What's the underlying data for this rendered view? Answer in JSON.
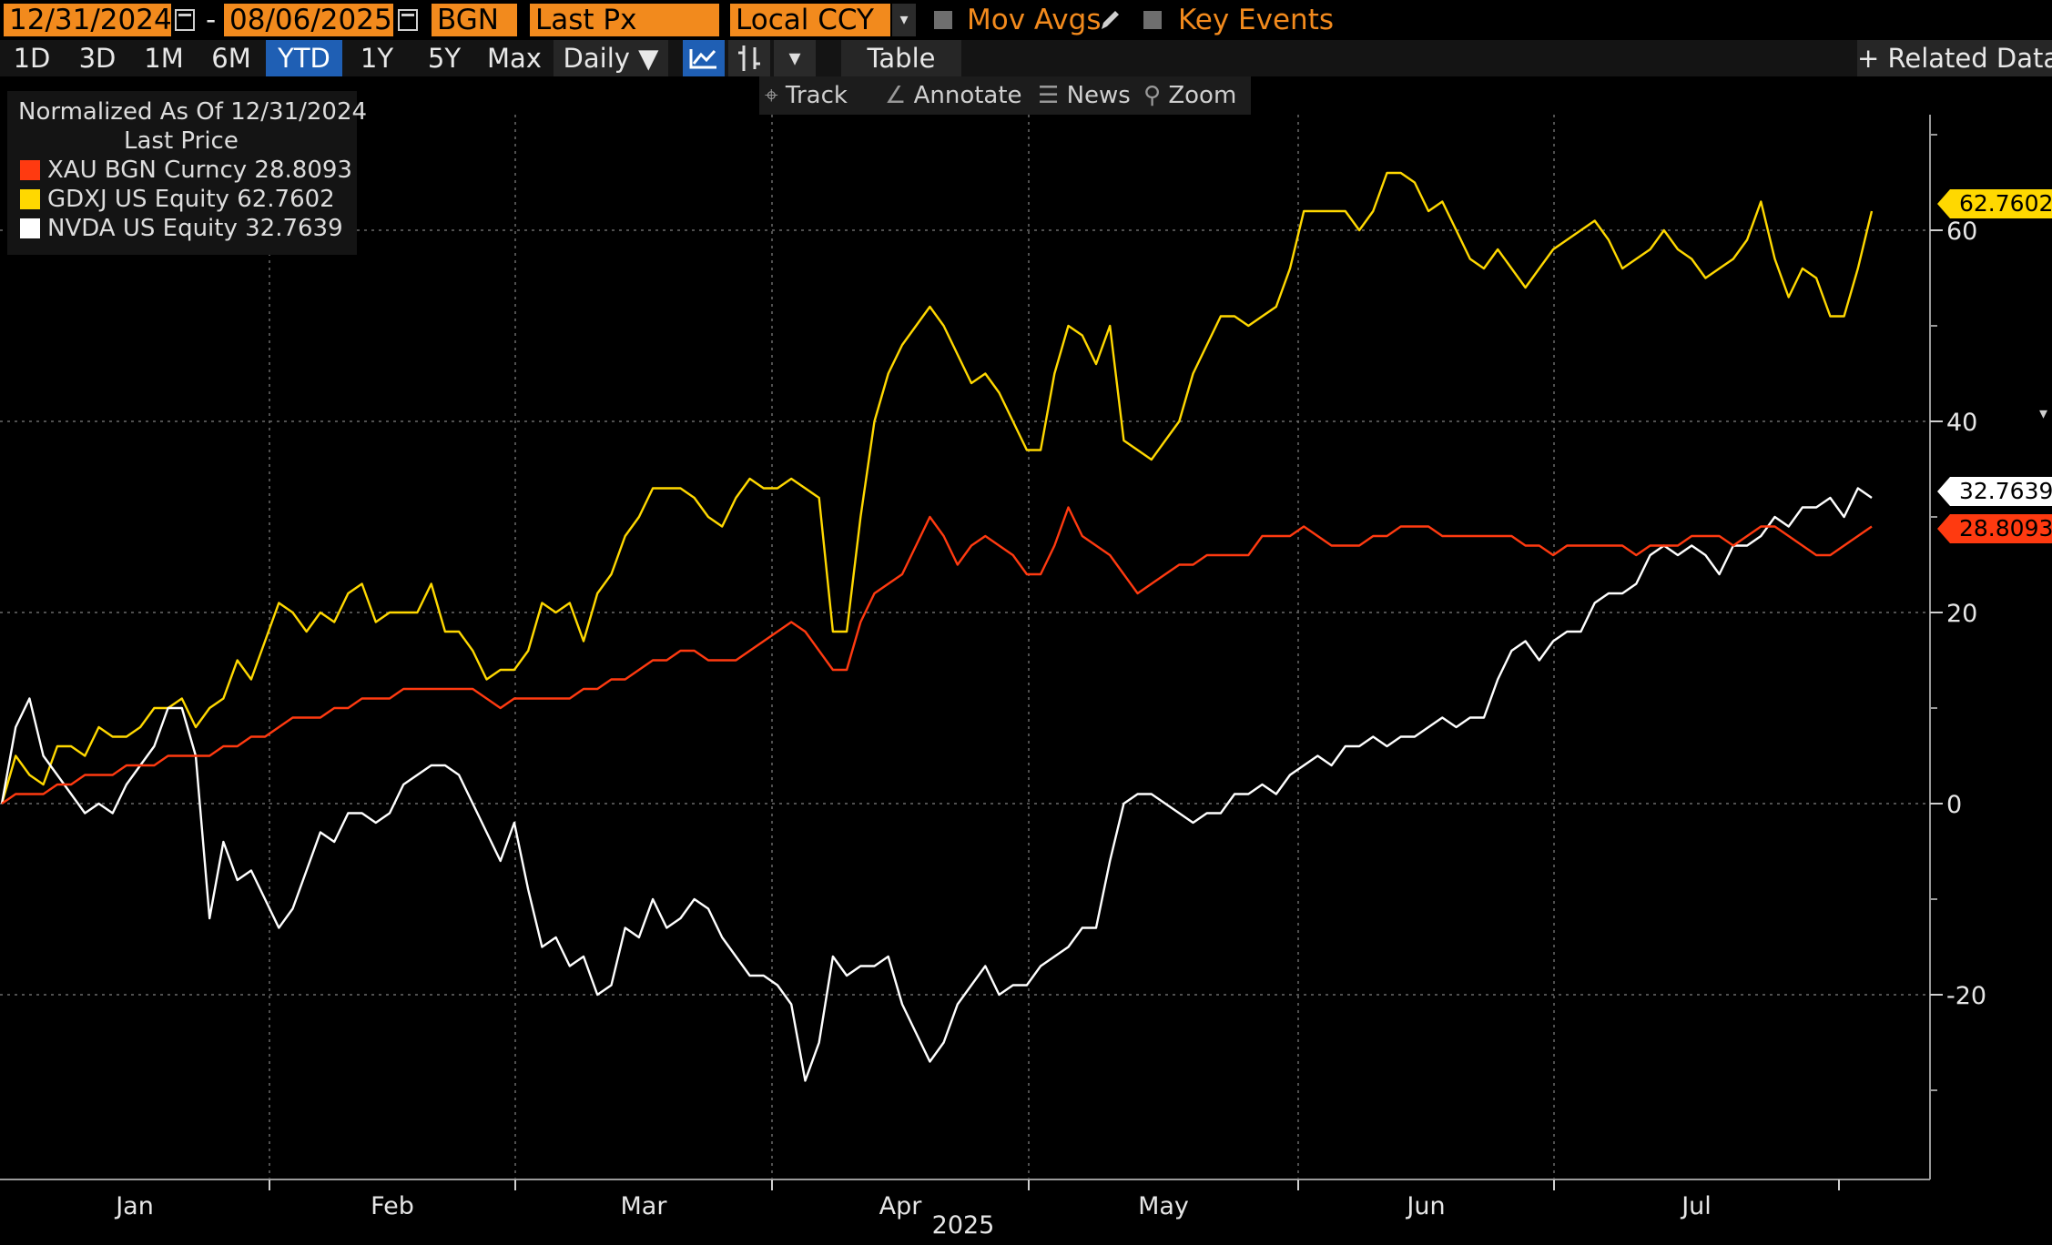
{
  "toolbar": {
    "start_date": "12/31/2024",
    "dash": "-",
    "end_date": "08/06/2025",
    "source": "BGN",
    "field": "Last Px",
    "currency": "Local CCY",
    "mov_avgs": "Mov Avgs",
    "key_events": "Key Events",
    "periods": [
      "1D",
      "3D",
      "1M",
      "6M",
      "YTD",
      "1Y",
      "5Y",
      "Max"
    ],
    "active_period": "YTD",
    "frequency": "Daily ▼",
    "table": "Table",
    "related_data": "+ Related Data"
  },
  "chart_tools": {
    "track": "Track",
    "annotate": "Annotate",
    "news": "News",
    "zoom": "Zoom"
  },
  "legend": {
    "line1": "Normalized As Of 12/31/2024",
    "line2": "Last Price",
    "entries": [
      {
        "label": "XAU BGN Curncy 28.8093",
        "color": "#ff3a10"
      },
      {
        "label": "GDXJ US Equity 62.7602",
        "color": "#ffd800"
      },
      {
        "label": "NVDA US Equity 32.7639",
        "color": "#ffffff"
      }
    ]
  },
  "chart_data": {
    "type": "line",
    "x_axis": {
      "months": [
        "Jan",
        "Feb",
        "Mar",
        "Apr",
        "May",
        "Jun",
        "Jul"
      ],
      "year": "2025"
    },
    "y_axis": {
      "ticks": [
        -20,
        0,
        20,
        40,
        60
      ],
      "range": [
        -40,
        75
      ],
      "side": "right"
    },
    "grid": true,
    "last_values": [
      "62.7602",
      "32.7639",
      "28.8093"
    ],
    "series": [
      {
        "name": "GDXJ US Equity",
        "color": "#ffd800",
        "values": [
          0,
          5,
          3,
          2,
          6,
          6,
          5,
          8,
          7,
          7,
          8,
          10,
          10,
          11,
          8,
          10,
          11,
          15,
          13,
          17,
          21,
          20,
          18,
          20,
          19,
          22,
          23,
          19,
          20,
          20,
          20,
          23,
          18,
          18,
          16,
          13,
          14,
          14,
          16,
          21,
          20,
          21,
          17,
          22,
          24,
          28,
          30,
          33,
          33,
          33,
          32,
          30,
          29,
          32,
          34,
          33,
          33,
          34,
          33,
          32,
          18,
          18,
          30,
          40,
          45,
          48,
          50,
          52,
          50,
          47,
          44,
          45,
          43,
          40,
          37,
          37,
          45,
          50,
          49,
          46,
          50,
          38,
          37,
          36,
          38,
          40,
          45,
          48,
          51,
          51,
          50,
          51,
          52,
          56,
          62,
          62,
          62,
          62,
          60,
          62,
          66,
          66,
          65,
          62,
          63,
          60,
          57,
          56,
          58,
          56,
          54,
          56,
          58,
          59,
          60,
          61,
          59,
          56,
          57,
          58,
          60,
          58,
          57,
          55,
          56,
          57,
          59,
          63,
          57,
          53,
          56,
          55,
          51,
          51,
          56,
          62
        ]
      },
      {
        "name": "NVDA US Equity",
        "color": "#ffffff",
        "values": [
          0,
          8,
          11,
          5,
          3,
          1,
          -1,
          0,
          -1,
          2,
          4,
          6,
          10,
          10,
          5,
          -12,
          -4,
          -8,
          -7,
          -10,
          -13,
          -11,
          -7,
          -3,
          -4,
          -1,
          -1,
          -2,
          -1,
          2,
          3,
          4,
          4,
          3,
          0,
          -3,
          -6,
          -2,
          -9,
          -15,
          -14,
          -17,
          -16,
          -20,
          -19,
          -13,
          -14,
          -10,
          -13,
          -12,
          -10,
          -11,
          -14,
          -16,
          -18,
          -18,
          -19,
          -21,
          -29,
          -25,
          -16,
          -18,
          -17,
          -17,
          -16,
          -21,
          -24,
          -27,
          -25,
          -21,
          -19,
          -17,
          -20,
          -19,
          -19,
          -17,
          -16,
          -15,
          -13,
          -13,
          -6,
          0,
          1,
          1,
          0,
          -1,
          -2,
          -1,
          -1,
          1,
          1,
          2,
          1,
          3,
          4,
          5,
          4,
          6,
          6,
          7,
          6,
          7,
          7,
          8,
          9,
          8,
          9,
          9,
          13,
          16,
          17,
          15,
          17,
          18,
          18,
          21,
          22,
          22,
          23,
          26,
          27,
          26,
          27,
          26,
          24,
          27,
          27,
          28,
          30,
          29,
          31,
          31,
          32,
          30,
          33,
          32
        ]
      },
      {
        "name": "XAU BGN Curncy",
        "color": "#ff3a10",
        "values": [
          0,
          1,
          1,
          1,
          2,
          2,
          3,
          3,
          3,
          4,
          4,
          4,
          5,
          5,
          5,
          5,
          6,
          6,
          7,
          7,
          8,
          9,
          9,
          9,
          10,
          10,
          11,
          11,
          11,
          12,
          12,
          12,
          12,
          12,
          12,
          11,
          10,
          11,
          11,
          11,
          11,
          11,
          12,
          12,
          13,
          13,
          14,
          15,
          15,
          16,
          16,
          15,
          15,
          15,
          16,
          17,
          18,
          19,
          18,
          16,
          14,
          14,
          19,
          22,
          23,
          24,
          27,
          30,
          28,
          25,
          27,
          28,
          27,
          26,
          24,
          24,
          27,
          31,
          28,
          27,
          26,
          24,
          22,
          23,
          24,
          25,
          25,
          26,
          26,
          26,
          26,
          28,
          28,
          28,
          29,
          28,
          27,
          27,
          27,
          28,
          28,
          29,
          29,
          29,
          28,
          28,
          28,
          28,
          28,
          28,
          27,
          27,
          26,
          27,
          27,
          27,
          27,
          27,
          26,
          27,
          27,
          27,
          28,
          28,
          28,
          27,
          28,
          29,
          29,
          28,
          27,
          26,
          26,
          27,
          28,
          29
        ]
      }
    ]
  }
}
